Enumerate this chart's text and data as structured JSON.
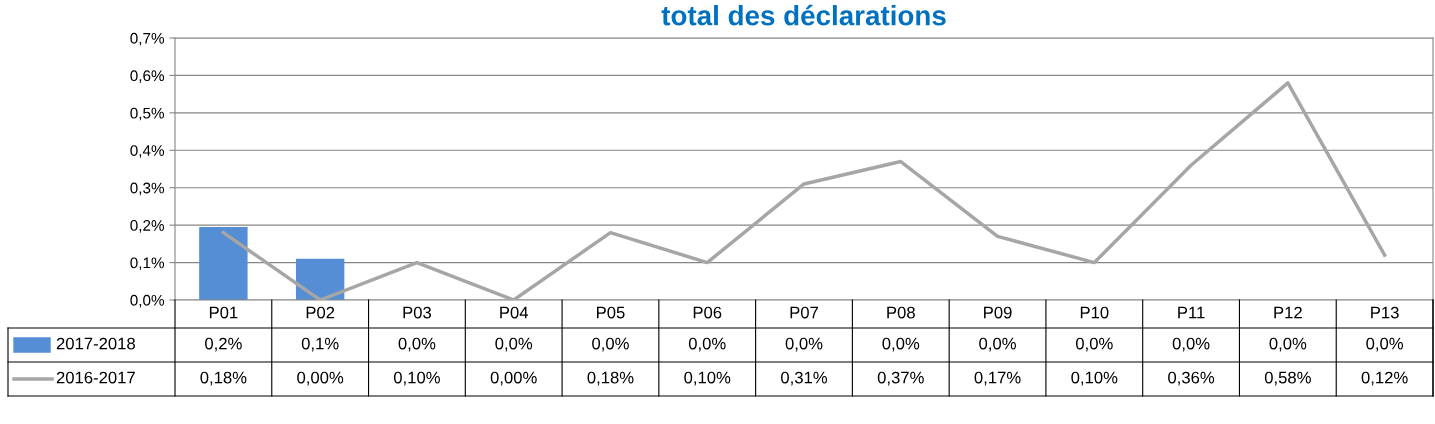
{
  "chart_data": {
    "type": "bar",
    "title": "total des déclarations",
    "categories": [
      "P01",
      "P02",
      "P03",
      "P04",
      "P05",
      "P06",
      "P07",
      "P08",
      "P09",
      "P10",
      "P11",
      "P12",
      "P13"
    ],
    "series": [
      {
        "name": "2017-2018",
        "color": "#558ed5",
        "values": [
          0.195,
          0.11,
          0,
          0,
          0,
          0,
          0,
          0,
          0,
          0,
          0,
          0,
          0
        ],
        "value_labels": [
          "0,2%",
          "0,1%",
          "0,0%",
          "0,0%",
          "0,0%",
          "0,0%",
          "0,0%",
          "0,0%",
          "0,0%",
          "0,0%",
          "0,0%",
          "0,0%",
          "0,0%"
        ]
      },
      {
        "name": "2016-2017",
        "type": "line",
        "color": "#a6a6a6",
        "values": [
          0.18,
          0.0,
          0.1,
          0.0,
          0.18,
          0.1,
          0.31,
          0.37,
          0.17,
          0.1,
          0.36,
          0.58,
          0.12
        ],
        "value_labels": [
          "0,18%",
          "0,00%",
          "0,10%",
          "0,00%",
          "0,18%",
          "0,10%",
          "0,31%",
          "0,37%",
          "0,17%",
          "0,10%",
          "0,36%",
          "0,58%",
          "0,12%"
        ]
      }
    ],
    "ylim": [
      0,
      0.7
    ],
    "yticks": [
      {
        "value": 0,
        "label": "0,0%"
      },
      {
        "value": 0.1,
        "label": "0,1%"
      },
      {
        "value": 0.2,
        "label": "0,2%"
      },
      {
        "value": 0.3,
        "label": "0,3%"
      },
      {
        "value": 0.4,
        "label": "0,4%"
      },
      {
        "value": 0.5,
        "label": "0,5%"
      },
      {
        "value": 0.6,
        "label": "0,6%"
      },
      {
        "value": 0.7,
        "label": "0,7%"
      }
    ],
    "grid": "y",
    "legend": "bottom",
    "marker": "none",
    "line_style": "solid"
  }
}
